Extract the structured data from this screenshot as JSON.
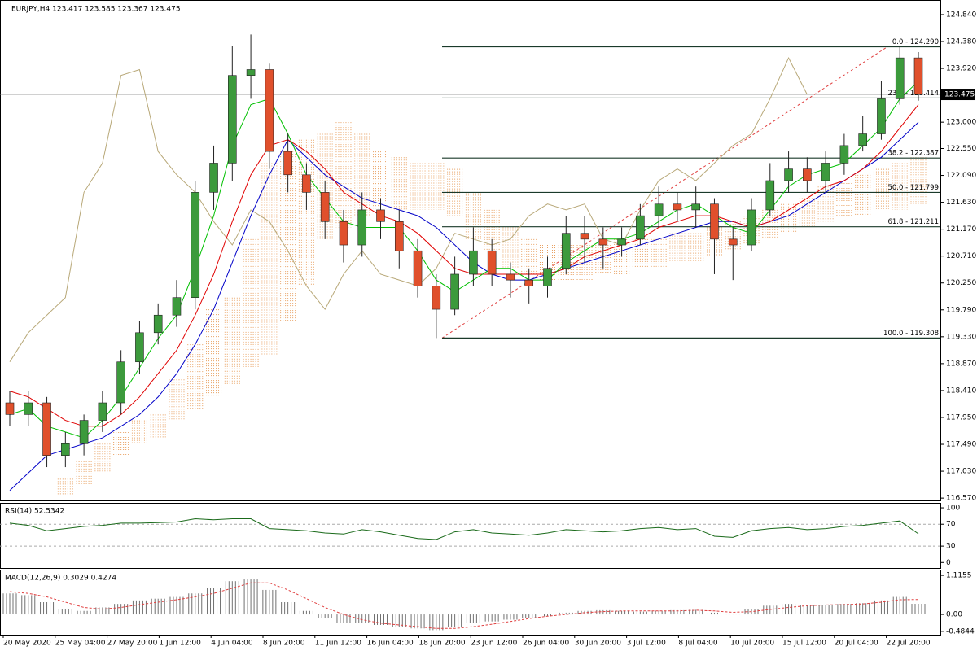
{
  "chart_data": {
    "type": "candlestick",
    "title": "EURJPY,H4  123.417 123.585 123.367 123.475",
    "ylim": [
      116.53,
      125.09
    ],
    "yticks": [
      {
        "value": 124.84,
        "label": "124.840"
      },
      {
        "value": 124.38,
        "label": "124.380"
      },
      {
        "value": 123.92,
        "label": "123.920"
      },
      {
        "value": 123.0,
        "label": "123.000"
      },
      {
        "value": 122.55,
        "label": "122.550"
      },
      {
        "value": 122.09,
        "label": "122.090"
      },
      {
        "value": 121.63,
        "label": "121.630"
      },
      {
        "value": 121.17,
        "label": "121.170"
      },
      {
        "value": 120.71,
        "label": "120.710"
      },
      {
        "value": 120.25,
        "label": "120.250"
      },
      {
        "value": 119.79,
        "label": "119.790"
      },
      {
        "value": 119.33,
        "label": "119.330"
      },
      {
        "value": 118.87,
        "label": "118.870"
      },
      {
        "value": 118.41,
        "label": "118.410"
      },
      {
        "value": 117.95,
        "label": "117.950"
      },
      {
        "value": 117.49,
        "label": "117.490"
      },
      {
        "value": 117.03,
        "label": "117.030"
      },
      {
        "value": 116.57,
        "label": "116.570"
      }
    ],
    "current_price": 123.475,
    "xlabels": [
      "20 May 2020",
      "25 May 04:00",
      "27 May 20:00",
      "1 Jun 12:00",
      "4 Jun 04:00",
      "8 Jun 20:00",
      "11 Jun 12:00",
      "16 Jun 04:00",
      "18 Jun 20:00",
      "23 Jun 12:00",
      "26 Jun 04:00",
      "30 Jun 20:00",
      "3 Jul 12:00",
      "8 Jul 04:00",
      "10 Jul 20:00",
      "15 Jul 12:00",
      "20 Jul 04:00",
      "22 Jul 20:00"
    ],
    "open": [
      118.2,
      118.0,
      118.2,
      117.3,
      117.5,
      117.9,
      118.2,
      118.9,
      119.4,
      119.7,
      120.0,
      121.8,
      122.3,
      123.8,
      123.9,
      122.5,
      122.1,
      121.8,
      121.3,
      120.9,
      121.5,
      121.3,
      120.8,
      120.2,
      119.8,
      120.4,
      120.8,
      120.4,
      120.3,
      120.2,
      120.5,
      121.1,
      121.0,
      120.9,
      121.0,
      121.4,
      121.6,
      121.5,
      121.6,
      121.0,
      120.9,
      121.5,
      122.0,
      122.2,
      122.0,
      122.3,
      122.6,
      122.8,
      123.4,
      124.1
    ],
    "high": [
      118.4,
      118.4,
      118.3,
      117.7,
      118.0,
      118.4,
      119.1,
      119.6,
      119.9,
      120.3,
      122.0,
      122.6,
      124.3,
      124.5,
      124.0,
      122.8,
      122.3,
      122.0,
      121.5,
      121.8,
      121.7,
      121.5,
      121.0,
      120.4,
      120.7,
      121.2,
      121.0,
      120.6,
      120.5,
      120.7,
      121.4,
      121.4,
      121.2,
      121.2,
      121.6,
      121.9,
      121.8,
      121.9,
      121.7,
      121.2,
      121.7,
      122.3,
      122.5,
      122.4,
      122.5,
      122.8,
      123.1,
      123.7,
      124.29,
      124.2
    ],
    "low": [
      117.8,
      117.8,
      117.1,
      117.1,
      117.3,
      117.7,
      118.0,
      118.7,
      119.2,
      119.5,
      119.8,
      121.5,
      122.0,
      123.4,
      122.2,
      121.8,
      121.5,
      121.0,
      120.6,
      120.7,
      121.0,
      120.5,
      120.0,
      119.308,
      119.7,
      120.2,
      120.2,
      120.0,
      119.9,
      120.0,
      120.4,
      120.6,
      120.5,
      120.7,
      120.9,
      121.2,
      121.3,
      121.2,
      120.4,
      120.3,
      120.8,
      121.4,
      121.8,
      121.8,
      121.8,
      122.1,
      122.5,
      122.7,
      123.3,
      123.367
    ],
    "close": [
      118.0,
      118.2,
      117.3,
      117.5,
      117.9,
      118.2,
      118.9,
      119.4,
      119.7,
      120.0,
      121.8,
      122.3,
      123.8,
      123.9,
      122.5,
      122.1,
      121.8,
      121.3,
      120.9,
      121.5,
      121.3,
      120.8,
      120.2,
      119.8,
      120.4,
      120.8,
      120.4,
      120.3,
      120.2,
      120.5,
      121.1,
      121.0,
      120.9,
      121.0,
      121.4,
      121.6,
      121.5,
      121.6,
      121.0,
      120.9,
      121.5,
      122.0,
      122.2,
      122.0,
      122.3,
      122.6,
      122.8,
      123.4,
      124.1,
      123.475
    ],
    "up_color": "#3c9a3c",
    "down_color": "#e0502c",
    "cloud": {
      "color": "#e8a060",
      "upper": [
        null,
        null,
        null,
        116.9,
        117.2,
        117.5,
        117.7,
        117.9,
        118.0,
        118.6,
        119.2,
        119.8,
        120.0,
        121.0,
        122.3,
        122.5,
        122.7,
        122.8,
        123.0,
        122.8,
        122.5,
        122.4,
        122.3,
        122.3,
        122.2,
        121.8,
        121.5,
        121.2,
        121.0,
        120.9,
        120.9,
        120.9,
        120.9,
        121.0,
        121.0,
        121.0,
        121.1,
        121.1,
        121.2,
        121.3,
        121.4,
        121.5,
        121.6,
        121.7,
        121.9,
        122.0,
        122.1,
        122.2,
        122.3,
        122.4
      ],
      "lower": [
        null,
        null,
        null,
        116.6,
        116.8,
        117.0,
        117.3,
        117.5,
        117.6,
        117.9,
        118.1,
        118.3,
        118.5,
        118.8,
        119.0,
        119.6,
        120.2,
        121.0,
        121.2,
        121.4,
        121.5,
        121.5,
        121.5,
        121.5,
        121.4,
        121.0,
        120.8,
        120.5,
        120.4,
        120.3,
        120.3,
        120.3,
        120.4,
        120.4,
        120.5,
        120.5,
        120.6,
        120.6,
        120.7,
        120.8,
        120.9,
        121.0,
        121.1,
        121.2,
        121.3,
        121.4,
        121.4,
        121.5,
        121.5,
        121.6
      ]
    },
    "lines": [
      {
        "color": "#b8a878",
        "values": [
          118.9,
          119.4,
          119.7,
          120.0,
          121.8,
          122.3,
          123.8,
          123.9,
          122.5,
          122.1,
          121.8,
          121.3,
          120.9,
          121.5,
          121.3,
          120.8,
          120.2,
          119.8,
          120.4,
          120.8,
          120.4,
          120.3,
          120.2,
          120.5,
          121.1,
          121.0,
          120.9,
          121.0,
          121.4,
          121.6,
          121.5,
          121.6,
          121.0,
          120.9,
          121.5,
          122.0,
          122.2,
          122.0,
          122.3,
          122.6,
          122.8,
          123.4,
          124.1,
          123.475,
          null,
          null,
          null,
          null,
          null,
          null
        ]
      },
      {
        "color": "#0000c8",
        "values": [
          116.7,
          117.0,
          117.3,
          117.4,
          117.5,
          117.6,
          117.8,
          118.0,
          118.3,
          118.7,
          119.2,
          119.8,
          120.6,
          121.4,
          122.1,
          122.7,
          122.4,
          122.1,
          121.9,
          121.7,
          121.6,
          121.5,
          121.4,
          121.2,
          120.9,
          120.6,
          120.4,
          120.3,
          120.3,
          120.4,
          120.5,
          120.6,
          120.7,
          120.8,
          120.9,
          121.0,
          121.1,
          121.2,
          121.3,
          121.3,
          121.2,
          121.3,
          121.4,
          121.6,
          121.8,
          122.0,
          122.2,
          122.4,
          122.7,
          123.0
        ]
      },
      {
        "color": "#e00000",
        "values": [
          118.4,
          118.3,
          118.1,
          117.9,
          117.8,
          117.8,
          118.0,
          118.3,
          118.7,
          119.1,
          119.7,
          120.4,
          121.3,
          122.1,
          122.6,
          122.7,
          122.5,
          122.2,
          121.8,
          121.6,
          121.4,
          121.3,
          121.1,
          120.8,
          120.5,
          120.4,
          120.4,
          120.4,
          120.4,
          120.4,
          120.5,
          120.7,
          120.8,
          120.9,
          121.0,
          121.2,
          121.3,
          121.4,
          121.4,
          121.3,
          121.2,
          121.3,
          121.5,
          121.7,
          121.9,
          122.0,
          122.2,
          122.5,
          122.9,
          123.3
        ]
      },
      {
        "color": "#00c000",
        "values": [
          118.0,
          118.1,
          117.8,
          117.7,
          117.6,
          117.9,
          118.3,
          118.8,
          119.3,
          119.7,
          120.5,
          121.4,
          122.6,
          123.3,
          123.4,
          122.8,
          122.1,
          121.7,
          121.3,
          121.2,
          121.2,
          121.2,
          120.8,
          120.3,
          120.1,
          120.3,
          120.5,
          120.5,
          120.3,
          120.3,
          120.6,
          120.8,
          121.0,
          121.0,
          121.1,
          121.3,
          121.5,
          121.6,
          121.4,
          121.2,
          121.1,
          121.5,
          121.9,
          122.1,
          122.2,
          122.3,
          122.6,
          122.9,
          123.4,
          123.7
        ]
      }
    ],
    "fibo": [
      {
        "value": 124.29,
        "label": "0.0 - 124.290"
      },
      {
        "value": 123.414,
        "label": "23.6 - 123.414"
      },
      {
        "value": 122.387,
        "label": "38.2 - 122.387"
      },
      {
        "value": 121.799,
        "label": "50.0 - 121.799"
      },
      {
        "value": 121.211,
        "label": "61.8 - 121.211"
      },
      {
        "value": 119.308,
        "label": "100.0 - 119.308"
      }
    ],
    "rsi": {
      "title": "RSI(14) 52.5342",
      "color": "#1a6a1a",
      "ylim": [
        -10,
        109
      ],
      "yticks": [
        100,
        70,
        30,
        0
      ],
      "levels": [
        70,
        30
      ],
      "values": [
        72,
        68,
        58,
        62,
        66,
        68,
        72,
        72,
        73,
        74,
        80,
        78,
        80,
        80,
        62,
        60,
        58,
        54,
        52,
        60,
        56,
        50,
        44,
        42,
        56,
        60,
        54,
        52,
        50,
        54,
        60,
        58,
        56,
        58,
        62,
        64,
        60,
        62,
        48,
        46,
        58,
        62,
        64,
        60,
        62,
        66,
        68,
        72,
        76,
        52.5342
      ]
    },
    "macd": {
      "title": "MACD(12,26,9) 0.3029 0.4274",
      "color": "#707070",
      "signal_color": "#e04040",
      "ylim": [
        -0.58,
        1.28
      ],
      "yticks": [
        1.1155,
        {
          "value": 0,
          "label": "0.00"
        },
        -0.4844
      ],
      "values": [
        0.6,
        0.55,
        0.35,
        0.15,
        0.1,
        0.2,
        0.3,
        0.4,
        0.45,
        0.5,
        0.6,
        0.75,
        0.95,
        1.0,
        0.7,
        0.35,
        0.1,
        -0.1,
        -0.25,
        -0.25,
        -0.3,
        -0.35,
        -0.4,
        -0.45,
        -0.35,
        -0.25,
        -0.2,
        -0.15,
        -0.1,
        -0.05,
        0.05,
        0.1,
        0.12,
        0.1,
        0.08,
        0.1,
        0.12,
        0.13,
        0.05,
        0.02,
        0.15,
        0.25,
        0.3,
        0.28,
        0.28,
        0.3,
        0.32,
        0.4,
        0.5,
        0.3029
      ],
      "signal": [
        0.65,
        0.6,
        0.5,
        0.35,
        0.2,
        0.15,
        0.2,
        0.28,
        0.35,
        0.42,
        0.5,
        0.6,
        0.75,
        0.9,
        0.9,
        0.7,
        0.45,
        0.2,
        0.0,
        -0.15,
        -0.25,
        -0.3,
        -0.35,
        -0.4,
        -0.4,
        -0.35,
        -0.28,
        -0.2,
        -0.12,
        -0.05,
        0.0,
        0.05,
        0.08,
        0.1,
        0.1,
        0.1,
        0.1,
        0.12,
        0.1,
        0.06,
        0.08,
        0.14,
        0.2,
        0.25,
        0.27,
        0.28,
        0.3,
        0.35,
        0.42,
        0.4274
      ]
    }
  }
}
